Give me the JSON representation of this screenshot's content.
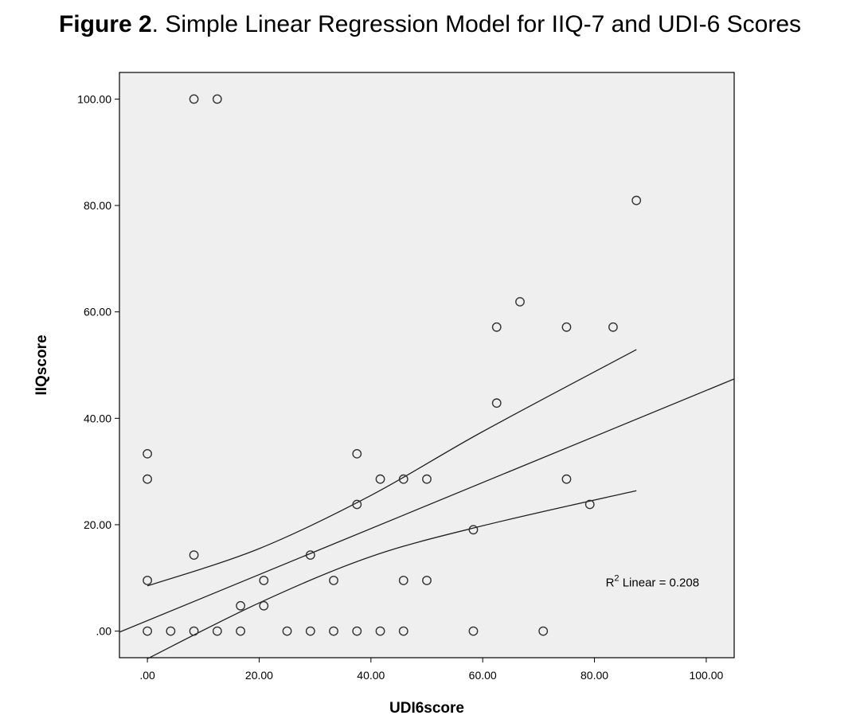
{
  "figure_title": {
    "bold": "Figure 2",
    "rest": ". Simple Linear Regression Model for IIQ-7 and UDI-6 Scores"
  },
  "colors": {
    "plot_background": "#efefef",
    "point_stroke": "#333333",
    "line": "#222222"
  },
  "chart_data": {
    "type": "scatter",
    "title": "Figure 2. Simple Linear Regression Model for IIQ-7 and UDI-6 Scores",
    "xlabel": "UDI6score",
    "ylabel": "IIQscore",
    "xlim": [
      -5,
      105
    ],
    "ylim": [
      -5,
      105
    ],
    "xticks": [
      0,
      20,
      40,
      60,
      80,
      100
    ],
    "xtick_labels": [
      ".00",
      "20.00",
      "40.00",
      "60.00",
      "80.00",
      "100.00"
    ],
    "yticks": [
      0,
      20,
      40,
      60,
      80,
      100
    ],
    "ytick_labels": [
      ".00",
      "20.00",
      "40.00",
      "60.00",
      "80.00",
      "100.00"
    ],
    "grid": false,
    "points": [
      {
        "x": 8.33,
        "y": 100
      },
      {
        "x": 12.5,
        "y": 100
      },
      {
        "x": 87.5,
        "y": 80.95
      },
      {
        "x": 66.67,
        "y": 61.9
      },
      {
        "x": 62.5,
        "y": 57.14
      },
      {
        "x": 75,
        "y": 57.14
      },
      {
        "x": 83.33,
        "y": 57.14
      },
      {
        "x": 62.5,
        "y": 42.86
      },
      {
        "x": 0,
        "y": 33.33
      },
      {
        "x": 37.5,
        "y": 33.33
      },
      {
        "x": 0,
        "y": 28.57
      },
      {
        "x": 41.67,
        "y": 28.57
      },
      {
        "x": 45.83,
        "y": 28.57
      },
      {
        "x": 50,
        "y": 28.57
      },
      {
        "x": 75,
        "y": 28.57
      },
      {
        "x": 37.5,
        "y": 23.81
      },
      {
        "x": 79.17,
        "y": 23.81
      },
      {
        "x": 58.33,
        "y": 19.05
      },
      {
        "x": 8.33,
        "y": 14.29
      },
      {
        "x": 29.17,
        "y": 14.29
      },
      {
        "x": 0,
        "y": 9.52
      },
      {
        "x": 20.83,
        "y": 9.52
      },
      {
        "x": 33.33,
        "y": 9.52
      },
      {
        "x": 45.83,
        "y": 9.52
      },
      {
        "x": 50,
        "y": 9.52
      },
      {
        "x": 16.67,
        "y": 4.76
      },
      {
        "x": 20.83,
        "y": 4.76
      },
      {
        "x": 0,
        "y": 0
      },
      {
        "x": 4.17,
        "y": 0
      },
      {
        "x": 8.33,
        "y": 0
      },
      {
        "x": 12.5,
        "y": 0
      },
      {
        "x": 16.67,
        "y": 0
      },
      {
        "x": 25,
        "y": 0
      },
      {
        "x": 29.17,
        "y": 0
      },
      {
        "x": 33.33,
        "y": 0
      },
      {
        "x": 37.5,
        "y": 0
      },
      {
        "x": 41.67,
        "y": 0
      },
      {
        "x": 45.83,
        "y": 0
      },
      {
        "x": 58.33,
        "y": 0
      },
      {
        "x": 70.83,
        "y": 0
      }
    ],
    "fit_line": {
      "x": [
        -5,
        105
      ],
      "y": [
        -0.2,
        47.4
      ]
    },
    "ci_upper": {
      "x": [
        0,
        20,
        40,
        60,
        87.5
      ],
      "y": [
        8.5,
        15.5,
        25.5,
        37.5,
        52.9
      ]
    },
    "ci_lower": {
      "x": [
        0,
        20,
        40,
        60,
        87.5
      ],
      "y": [
        -5.2,
        5.3,
        14,
        19.8,
        26.4
      ]
    },
    "annotation": {
      "prefix": "R",
      "sup": "2",
      "text": " Linear = 0.208",
      "x": 82,
      "y": 8.4
    }
  }
}
